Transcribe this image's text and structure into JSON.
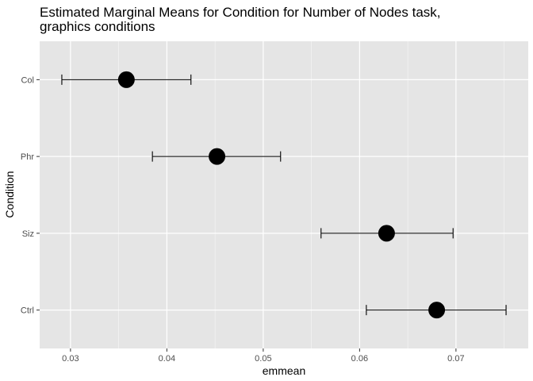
{
  "chart_data": {
    "type": "scatter",
    "title_lines": [
      "Estimated Marginal Means for Condition for Number of Nodes task,",
      "graphics conditions"
    ],
    "xlabel": "emmean",
    "ylabel": "Condition",
    "xlim": [
      0.0268,
      0.0775
    ],
    "x_ticks": [
      0.03,
      0.04,
      0.05,
      0.06,
      0.07
    ],
    "x_tick_labels": [
      "0.03",
      "0.04",
      "0.05",
      "0.06",
      "0.07"
    ],
    "categories": [
      "Col",
      "Phr",
      "Siz",
      "Ctrl"
    ],
    "series": [
      {
        "points": [
          {
            "category": "Col",
            "emmean": 0.0358,
            "lower": 0.0291,
            "upper": 0.0425
          },
          {
            "category": "Phr",
            "emmean": 0.0452,
            "lower": 0.0385,
            "upper": 0.0518
          },
          {
            "category": "Siz",
            "emmean": 0.0628,
            "lower": 0.056,
            "upper": 0.0697
          },
          {
            "category": "Ctrl",
            "emmean": 0.068,
            "lower": 0.0607,
            "upper": 0.0752
          }
        ]
      }
    ],
    "grid": true,
    "legend": "none",
    "colors": {
      "panel": "#e5e5e5",
      "grid_major": "#ffffff",
      "point": "#000000",
      "errorbar": "#000000"
    }
  }
}
